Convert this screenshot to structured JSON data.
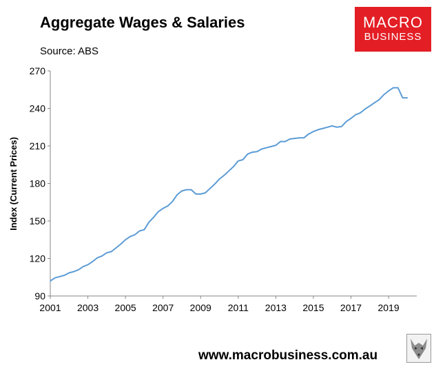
{
  "header": {
    "title": "Aggregate Wages & Salaries",
    "source": "Source: ABS"
  },
  "logo": {
    "line1": "MACRO",
    "line2": "BUSINESS",
    "color": "#e31e24"
  },
  "footer": {
    "website": "www.macrobusiness.com.au",
    "wolf_icon": "wolf-icon"
  },
  "chart_data": {
    "type": "line",
    "ylabel": "Index (Current Prices)",
    "xlabel": "",
    "ylim": [
      90,
      270
    ],
    "xlim": [
      2001,
      2020.5
    ],
    "y_ticks": [
      90,
      120,
      150,
      180,
      210,
      240,
      270
    ],
    "x_ticks": [
      2001,
      2003,
      2005,
      2007,
      2009,
      2011,
      2013,
      2015,
      2017,
      2019
    ],
    "grid": "none",
    "line_color": "#5b9bd5",
    "series": [
      {
        "x": [
          2001.0,
          2001.25,
          2001.5,
          2001.75,
          2002.0,
          2002.25,
          2002.5,
          2002.75,
          2003.0,
          2003.25,
          2003.5,
          2003.75,
          2004.0,
          2004.25,
          2004.5,
          2004.75,
          2005.0,
          2005.25,
          2005.5,
          2005.75,
          2006.0,
          2006.25,
          2006.5,
          2006.75,
          2007.0,
          2007.25,
          2007.5,
          2007.75,
          2008.0,
          2008.25,
          2008.5,
          2008.75,
          2009.0,
          2009.25,
          2009.5,
          2009.75,
          2010.0,
          2010.25,
          2010.5,
          2010.75,
          2011.0,
          2011.25,
          2011.5,
          2011.75,
          2012.0,
          2012.25,
          2012.5,
          2012.75,
          2013.0,
          2013.25,
          2013.5,
          2013.75,
          2014.0,
          2014.25,
          2014.5,
          2014.75,
          2015.0,
          2015.25,
          2015.5,
          2015.75,
          2016.0,
          2016.25,
          2016.5,
          2016.75,
          2017.0,
          2017.25,
          2017.5,
          2017.75,
          2018.0,
          2018.25,
          2018.5,
          2018.75,
          2019.0,
          2019.25,
          2019.5,
          2019.75,
          2020.0
        ],
        "values": [
          102,
          104.5,
          105.5,
          106.5,
          108.5,
          109.5,
          111,
          113.5,
          115,
          117.5,
          120.5,
          122,
          124.5,
          125.5,
          128.5,
          131.5,
          135,
          137.5,
          139,
          142,
          143,
          149,
          153,
          157.5,
          160,
          162,
          165.5,
          171,
          174,
          175,
          175,
          171.5,
          171.5,
          172.5,
          176,
          179.5,
          183.5,
          186.5,
          190,
          193.5,
          198,
          199,
          203.5,
          205,
          205.5,
          207.5,
          208.5,
          209.5,
          210.5,
          213.5,
          213.5,
          215.5,
          216,
          216.5,
          216.5,
          219.5,
          221.5,
          223,
          224,
          225,
          226,
          225,
          225.5,
          229.5,
          232,
          235,
          236.5,
          239.5,
          242,
          244.5,
          247,
          251,
          254,
          256.5,
          256.5,
          248.5,
          248.5
        ]
      }
    ]
  }
}
